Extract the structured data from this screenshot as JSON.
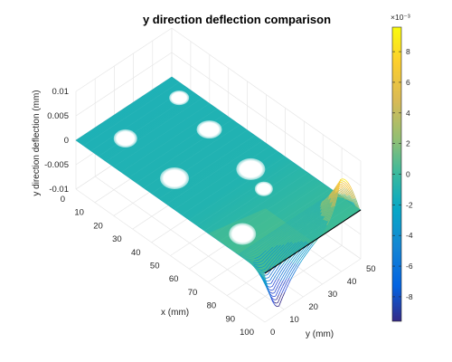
{
  "chart_data": {
    "type": "surface3d",
    "title": "y direction deflection comparison",
    "xlabel": "x (mm)",
    "ylabel": "y (mm)",
    "zlabel": "y direction deflection (mm)",
    "xlim": [
      0,
      100
    ],
    "ylim": [
      0,
      50
    ],
    "zlim": [
      -0.01,
      0.01
    ],
    "x_ticks": [
      "0",
      "10",
      "20",
      "30",
      "40",
      "50",
      "60",
      "70",
      "80",
      "90",
      "100"
    ],
    "y_ticks": [
      "0",
      "10",
      "20",
      "30",
      "40",
      "50"
    ],
    "z_ticks": [
      "0.01",
      "0.005",
      "0",
      "-0.005",
      "-0.01"
    ],
    "grid": true,
    "colormap": "parula",
    "colorbar": {
      "exponent_label": "×10⁻³",
      "ticks": [
        "8",
        "6",
        "4",
        "2",
        "0",
        "-2",
        "-4",
        "-6",
        "-8"
      ],
      "range": [
        -0.0096,
        0.0096
      ],
      "tick_values": [
        8,
        6,
        4,
        2,
        0,
        -2,
        -4,
        -6,
        -8
      ]
    },
    "surface_features": {
      "flat_region_value": 0.0,
      "edge_wave_at_x": 100,
      "edge_wave_min": -0.0096,
      "edge_wave_max": 0.0092,
      "highlight_holes": 7
    }
  }
}
